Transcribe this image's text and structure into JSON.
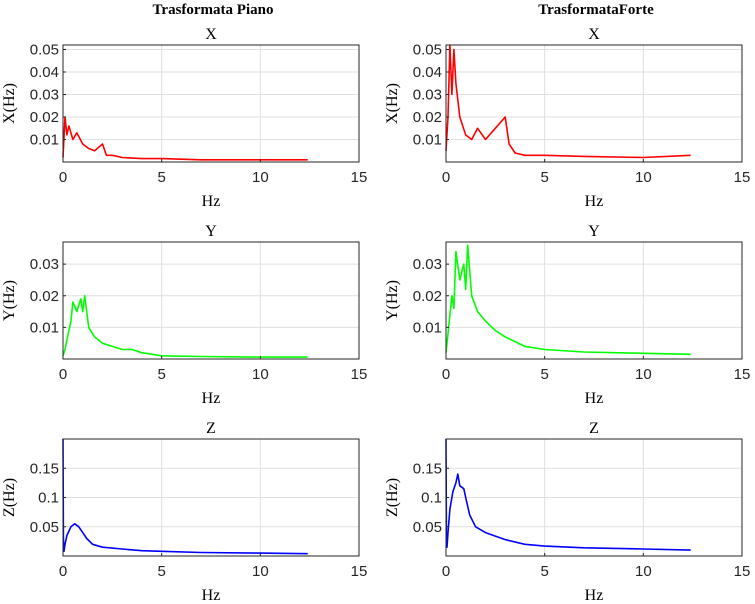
{
  "column_titles": [
    "Trasformata Piano",
    "TrasformataForte"
  ],
  "chart_data": [
    {
      "type": "line",
      "title": "X",
      "xlabel": "Hz",
      "ylabel": "X(Hz)",
      "color": "#ff0000",
      "xlim": [
        0,
        15
      ],
      "ylim": [
        0,
        0.052
      ],
      "xticks": [
        0,
        5,
        10,
        15
      ],
      "yticks": [
        0.01,
        0.02,
        0.03,
        0.04,
        0.05
      ],
      "grid": true,
      "series": [
        {
          "x": [
            0,
            0.1,
            0.2,
            0.3,
            0.5,
            0.7,
            1.0,
            1.3,
            1.6,
            2.0,
            2.2,
            2.5,
            3.0,
            4.0,
            5.0,
            7.0,
            10.0,
            12.4
          ],
          "y": [
            0.002,
            0.02,
            0.012,
            0.016,
            0.01,
            0.013,
            0.008,
            0.006,
            0.005,
            0.008,
            0.003,
            0.003,
            0.002,
            0.0015,
            0.0015,
            0.001,
            0.001,
            0.001
          ]
        }
      ]
    },
    {
      "type": "line",
      "title": "X",
      "xlabel": "Hz",
      "ylabel": "X(Hz)",
      "color": "#ff0000",
      "xlim": [
        0,
        15
      ],
      "ylim": [
        0,
        0.052
      ],
      "xticks": [
        0,
        5,
        10,
        15
      ],
      "yticks": [
        0.01,
        0.02,
        0.03,
        0.04,
        0.05
      ],
      "grid": true,
      "series": [
        {
          "x": [
            0,
            0.1,
            0.2,
            0.3,
            0.4,
            0.5,
            0.7,
            1.0,
            1.3,
            1.6,
            2.0,
            2.5,
            3.0,
            3.2,
            3.5,
            4.0,
            5.0,
            7.0,
            10.0,
            12.4
          ],
          "y": [
            0.005,
            0.02,
            0.052,
            0.03,
            0.05,
            0.035,
            0.02,
            0.012,
            0.01,
            0.015,
            0.01,
            0.015,
            0.02,
            0.008,
            0.004,
            0.003,
            0.003,
            0.0025,
            0.002,
            0.003
          ]
        }
      ]
    },
    {
      "type": "line",
      "title": "Y",
      "xlabel": "Hz",
      "ylabel": "Y(Hz)",
      "color": "#00ff00",
      "xlim": [
        0,
        15
      ],
      "ylim": [
        0,
        0.037
      ],
      "xticks": [
        0,
        5,
        10,
        15
      ],
      "yticks": [
        0.01,
        0.02,
        0.03
      ],
      "grid": true,
      "series": [
        {
          "x": [
            0,
            0.1,
            0.2,
            0.4,
            0.5,
            0.7,
            0.9,
            1.0,
            1.1,
            1.3,
            1.6,
            2.0,
            2.5,
            3.0,
            3.5,
            4.0,
            5.0,
            7.0,
            10.0,
            12.4
          ],
          "y": [
            0.001,
            0.003,
            0.006,
            0.012,
            0.018,
            0.015,
            0.019,
            0.015,
            0.02,
            0.01,
            0.007,
            0.005,
            0.004,
            0.003,
            0.003,
            0.002,
            0.001,
            0.0008,
            0.0006,
            0.0006
          ]
        }
      ]
    },
    {
      "type": "line",
      "title": "Y",
      "xlabel": "Hz",
      "ylabel": "Y(Hz)",
      "color": "#00ff00",
      "xlim": [
        0,
        15
      ],
      "ylim": [
        0,
        0.037
      ],
      "xticks": [
        0,
        5,
        10,
        15
      ],
      "yticks": [
        0.01,
        0.02,
        0.03
      ],
      "grid": true,
      "series": [
        {
          "x": [
            0,
            0.1,
            0.2,
            0.3,
            0.4,
            0.5,
            0.7,
            0.9,
            1.0,
            1.1,
            1.3,
            1.6,
            2.0,
            2.5,
            3.0,
            4.0,
            5.0,
            7.0,
            10.0,
            12.4
          ],
          "y": [
            0.002,
            0.008,
            0.014,
            0.02,
            0.016,
            0.034,
            0.025,
            0.03,
            0.022,
            0.036,
            0.02,
            0.015,
            0.012,
            0.009,
            0.007,
            0.004,
            0.003,
            0.0022,
            0.0018,
            0.0015
          ]
        }
      ]
    },
    {
      "type": "line",
      "title": "Z",
      "xlabel": "Hz",
      "ylabel": "Z(Hz)",
      "color": "#0000ff",
      "xlim": [
        0,
        15
      ],
      "ylim": [
        0,
        0.2
      ],
      "xticks": [
        0,
        5,
        10,
        15
      ],
      "yticks": [
        0.05,
        0.1,
        0.15
      ],
      "grid": true,
      "series": [
        {
          "x": [
            0,
            0.02,
            0.05,
            0.1,
            0.2,
            0.4,
            0.6,
            0.8,
            1.0,
            1.2,
            1.5,
            2.0,
            3.0,
            4.0,
            5.0,
            7.0,
            10.0,
            12.4
          ],
          "y": [
            0.2,
            0.03,
            0.008,
            0.02,
            0.035,
            0.05,
            0.055,
            0.05,
            0.04,
            0.03,
            0.02,
            0.015,
            0.012,
            0.009,
            0.008,
            0.006,
            0.005,
            0.004
          ]
        }
      ]
    },
    {
      "type": "line",
      "title": "Z",
      "xlabel": "Hz",
      "ylabel": "Z(Hz)",
      "color": "#0000ff",
      "xlim": [
        0,
        15
      ],
      "ylim": [
        0,
        0.2
      ],
      "xticks": [
        0,
        5,
        10,
        15
      ],
      "yticks": [
        0.05,
        0.1,
        0.15
      ],
      "grid": true,
      "series": [
        {
          "x": [
            0,
            0.02,
            0.05,
            0.1,
            0.2,
            0.35,
            0.5,
            0.6,
            0.7,
            0.9,
            1.0,
            1.2,
            1.5,
            2.0,
            3.0,
            4.0,
            5.0,
            7.0,
            10.0,
            12.4
          ],
          "y": [
            0.2,
            0.04,
            0.015,
            0.04,
            0.08,
            0.11,
            0.125,
            0.14,
            0.12,
            0.115,
            0.1,
            0.07,
            0.05,
            0.04,
            0.028,
            0.02,
            0.017,
            0.014,
            0.012,
            0.01
          ]
        }
      ]
    }
  ]
}
